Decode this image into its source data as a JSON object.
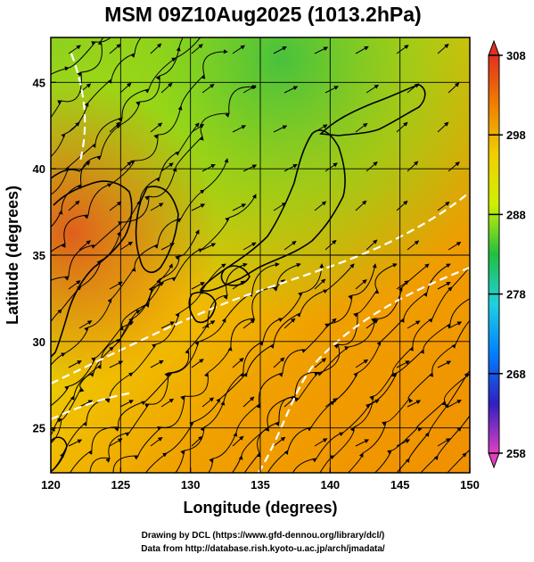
{
  "chart_data": {
    "type": "heatmap",
    "title": "MSM 09Z10Aug2025 (1013.2hPa)",
    "xlabel": "Longitude (degrees)",
    "ylabel": "Latitude  (degrees)",
    "xlim": [
      120,
      150
    ],
    "ylim": [
      22.4,
      47.6
    ],
    "x_ticks": [
      120,
      125,
      130,
      135,
      140,
      145,
      150
    ],
    "y_ticks": [
      25,
      30,
      35,
      40,
      45
    ],
    "grid": true,
    "overlays": [
      "streamlines (surface wind)",
      "coastlines",
      "white dashed temperature contours"
    ],
    "colorbar": {
      "orientation": "vertical",
      "placement": "right",
      "range": [
        258,
        308
      ],
      "ticks": [
        258,
        268,
        278,
        288,
        298,
        308
      ],
      "colors": [
        "#e040c0",
        "#3020c0",
        "#0080ff",
        "#20d0e0",
        "#20c040",
        "#d0f000",
        "#f0d000",
        "#f08000",
        "#e03020"
      ]
    },
    "field_description": "Near-surface temperature (K); ~300-303 K over the sea south of Japan, ~290-295 K in northern areas, ~303-306 K over eastern China"
  },
  "footer": {
    "line1": "Drawing by DCL (https://www.gfd-dennou.org/library/dcl/)",
    "line2": "Data from http://database.rish.kyoto-u.ac.jp/arch/jmadata/"
  }
}
